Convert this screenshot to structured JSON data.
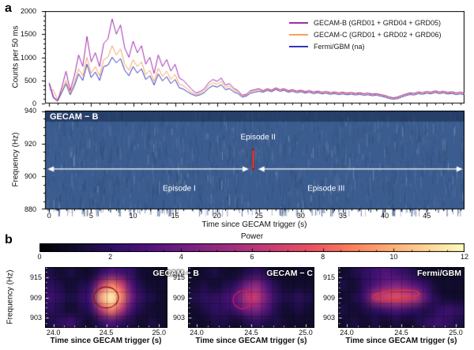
{
  "figure": {
    "panel_a": "a",
    "panel_b": "b"
  },
  "shared": {
    "counts_label": "Counts per 50 ms",
    "freq_label": "Frequency (Hz)",
    "time_label": "Time since GECAM trigger (s)"
  },
  "chart_data": [
    {
      "id": "lightcurve_panel",
      "type": "line",
      "ylabel": "Counts per 50 ms",
      "ylim": [
        0,
        2000
      ],
      "yticks": [
        0,
        500,
        1000,
        1500,
        2000
      ],
      "ytick_minor": 100,
      "xlim": [
        -0.5,
        49.5
      ],
      "xticks": [
        0,
        5,
        10,
        15,
        20,
        25,
        30,
        35,
        40,
        45
      ],
      "xtick_minor": 1,
      "t_start": 0,
      "t_step": 0.5,
      "legend_position": "upper right",
      "series": [
        {
          "name": "GECAM-B (GRD01 + GRD04 + GRD05)",
          "color": "#a22ab0",
          "values": [
            450,
            150,
            60,
            350,
            700,
            280,
            600,
            1050,
            800,
            1450,
            900,
            1100,
            800,
            1300,
            1400,
            1830,
            1500,
            1700,
            1200,
            1000,
            1350,
            1100,
            1250,
            850,
            1000,
            650,
            1050,
            800,
            950,
            700,
            850,
            550,
            500,
            400,
            300,
            230,
            260,
            320,
            450,
            520,
            480,
            550,
            400,
            430,
            330,
            280,
            180,
            200,
            280,
            300,
            320,
            280,
            320,
            290,
            340,
            300,
            320,
            280,
            300,
            270,
            290,
            260,
            280,
            250,
            270,
            245,
            260,
            235,
            250,
            230,
            245,
            225,
            240,
            220,
            235,
            215,
            225,
            205,
            215,
            195,
            175,
            145,
            125,
            140,
            175,
            205,
            230,
            220,
            250,
            235,
            260,
            245,
            275,
            250,
            265,
            240,
            255,
            230,
            245,
            225
          ]
        },
        {
          "name": "GECAM-C (GRD01 + GRD02 + GRD06)",
          "color": "#f2a45c",
          "values": [
            300,
            290,
            80,
            280,
            500,
            220,
            450,
            750,
            600,
            1000,
            650,
            800,
            600,
            950,
            1000,
            1250,
            1050,
            1180,
            850,
            720,
            950,
            800,
            900,
            620,
            720,
            480,
            760,
            590,
            700,
            520,
            630,
            420,
            380,
            310,
            240,
            195,
            225,
            275,
            390,
            450,
            415,
            475,
            350,
            375,
            295,
            250,
            165,
            185,
            260,
            280,
            300,
            265,
            305,
            275,
            325,
            285,
            305,
            265,
            285,
            255,
            275,
            245,
            265,
            235,
            255,
            230,
            245,
            220,
            235,
            215,
            230,
            210,
            225,
            205,
            220,
            200,
            210,
            190,
            200,
            180,
            160,
            130,
            112,
            125,
            160,
            190,
            215,
            205,
            235,
            220,
            245,
            230,
            260,
            235,
            250,
            225,
            240,
            215,
            230,
            210
          ]
        },
        {
          "name": "Fermi/GBM (na)",
          "color": "#3434bb",
          "values": [
            420,
            120,
            50,
            240,
            430,
            190,
            380,
            640,
            500,
            850,
            560,
            680,
            500,
            800,
            830,
            1000,
            880,
            970,
            720,
            600,
            800,
            660,
            750,
            520,
            600,
            400,
            640,
            490,
            580,
            430,
            520,
            340,
            310,
            250,
            200,
            165,
            190,
            235,
            330,
            385,
            355,
            405,
            300,
            320,
            250,
            215,
            140,
            160,
            225,
            245,
            265,
            245,
            285,
            255,
            305,
            265,
            285,
            245,
            265,
            235,
            255,
            225,
            245,
            215,
            235,
            210,
            225,
            200,
            215,
            195,
            210,
            190,
            205,
            185,
            200,
            180,
            190,
            170,
            180,
            160,
            140,
            110,
            95,
            105,
            140,
            170,
            195,
            185,
            215,
            200,
            225,
            210,
            240,
            215,
            230,
            205,
            220,
            195,
            210,
            190
          ]
        }
      ]
    },
    {
      "id": "spectrogram_full",
      "type": "heatmap",
      "title": "GECAM − B",
      "ylabel": "Frequency (Hz)",
      "ylim": [
        880,
        940
      ],
      "yticks": [
        880,
        900,
        920,
        940
      ],
      "ytick_minor": 5,
      "xlim": [
        -0.5,
        49.5
      ],
      "xticks": [
        0,
        5,
        10,
        15,
        20,
        25,
        30,
        35,
        40,
        45
      ],
      "xtick_minor": 1,
      "xlabel": "Time since GECAM trigger (s)",
      "background": "blue-noise",
      "noise_colors": {
        "base": "#3b5c8e",
        "dark": "#32517d",
        "mid": "#44639a",
        "light": "#53719f",
        "bright": "#7f96b8"
      },
      "arrow_color": "#ffffff",
      "marker_color": "#a31515",
      "marker_core_color": "#ff6a5a",
      "episodes": [
        {
          "name": "Episode I",
          "t_start": -0.2,
          "t_end": 23.8,
          "arrow_f": 904.5,
          "label_t": 15.5,
          "label_f": 892.5
        },
        {
          "name": "Episode II",
          "marker_t": 24.3,
          "marker_f_lo": 904,
          "marker_f_hi": 917,
          "label_t": 24.9,
          "label_f": 923.5
        },
        {
          "name": "Episode III",
          "t_start": 24.9,
          "t_end": 49.3,
          "arrow_f": 904.5,
          "label_t": 33.0,
          "label_f": 892.5
        }
      ]
    },
    {
      "id": "power_colorbar",
      "type": "colorbar",
      "title": "Power",
      "lim": [
        0,
        12
      ],
      "ticks": [
        0,
        2,
        4,
        6,
        8,
        10,
        12
      ],
      "tick_minor": 0.5,
      "stops": [
        "#000004",
        "#120d31",
        "#331068",
        "#57157e",
        "#7b2382",
        "#a1307e",
        "#c83e73",
        "#e75263",
        "#f97b5d",
        "#fea973",
        "#fed395",
        "#fcfdbf"
      ]
    },
    {
      "id": "zoom_gecam_b",
      "type": "heatmap",
      "title": "GECAM − B",
      "xlim": [
        23.92,
        25.08
      ],
      "xticks": [
        24.0,
        24.5,
        25.0
      ],
      "xtick_minor": 0.1,
      "ylim": [
        900,
        918
      ],
      "yticks": [
        903,
        909,
        915
      ],
      "ytick_minor": 1.5,
      "xlabel": "Time since GECAM trigger (s)",
      "power": [
        [
          1.5,
          1,
          1.5,
          1,
          1,
          2,
          3,
          2.5,
          2,
          1,
          1,
          1
        ],
        [
          2,
          1.5,
          1,
          1.5,
          2,
          6,
          9,
          7,
          3,
          1.5,
          1,
          1
        ],
        [
          2.5,
          2,
          1.5,
          2,
          3,
          10,
          12,
          9,
          4,
          2,
          1.5,
          1
        ],
        [
          2,
          1.5,
          1,
          1.5,
          2,
          6,
          9,
          6,
          2.5,
          1.5,
          1,
          1
        ],
        [
          1.5,
          2,
          2.5,
          1.5,
          1,
          2,
          3,
          2,
          1.5,
          1,
          1.5,
          1
        ]
      ],
      "contour": {
        "t": 24.5,
        "f": 909,
        "rt": 0.115,
        "rf": 3.1,
        "rot_deg": 0,
        "color": "#8b1410"
      }
    },
    {
      "id": "zoom_gecam_c",
      "type": "heatmap",
      "title": "GECAM − C",
      "xlim": [
        23.92,
        25.08
      ],
      "xticks": [
        24.0,
        24.5,
        25.0
      ],
      "xtick_minor": 0.1,
      "ylim": [
        900,
        918
      ],
      "yticks": [
        903,
        909,
        915
      ],
      "ytick_minor": 1.5,
      "xlabel": "Time since GECAM trigger (s)",
      "power": [
        [
          1,
          1,
          1.5,
          1,
          1,
          1.5,
          2,
          1.5,
          1,
          1,
          1,
          1
        ],
        [
          1,
          1.5,
          1,
          1.5,
          2,
          4,
          5,
          3,
          1.5,
          1,
          1,
          1
        ],
        [
          1.5,
          2,
          2,
          2.5,
          3.5,
          6,
          6.5,
          4,
          2,
          1.5,
          2,
          1.5
        ],
        [
          1,
          1.5,
          2,
          2,
          2.5,
          4,
          4.5,
          3,
          1.5,
          1,
          1.5,
          1
        ],
        [
          1,
          1,
          1.5,
          1.5,
          1,
          1.5,
          2,
          1.5,
          1.5,
          1,
          1,
          1
        ]
      ],
      "contour": {
        "t": 24.42,
        "f": 908.3,
        "rt": 0.085,
        "rf": 2.6,
        "rot_deg": 0,
        "color": "#e0194e"
      }
    },
    {
      "id": "zoom_fermi_gbm",
      "type": "heatmap",
      "title": "Fermi/GBM",
      "xlim": [
        23.92,
        25.08
      ],
      "xticks": [
        24.0,
        24.5,
        25.0
      ],
      "xtick_minor": 0.1,
      "ylim": [
        900,
        918
      ],
      "yticks": [
        903,
        909,
        915
      ],
      "ytick_minor": 1.5,
      "xlabel": "Time since GECAM trigger (s)",
      "power": [
        [
          1,
          1.5,
          2,
          2.5,
          3,
          2.5,
          2,
          1.5,
          1,
          1,
          1,
          1
        ],
        [
          1.5,
          1,
          2,
          3,
          4,
          4.5,
          4,
          3,
          2,
          1,
          1,
          1
        ],
        [
          1,
          1.5,
          2.5,
          6,
          7,
          7.5,
          7,
          6,
          3,
          1.5,
          1,
          1
        ],
        [
          1.5,
          1,
          1.5,
          2,
          2.5,
          3,
          2.5,
          2,
          1.5,
          2,
          2.5,
          2
        ],
        [
          1,
          1.5,
          1,
          1.5,
          1,
          1.5,
          1,
          1.5,
          2,
          2.5,
          2,
          1.5
        ]
      ],
      "contour": {
        "t": 24.45,
        "f": 909.7,
        "rt": 0.215,
        "rf": 1.35,
        "rot_deg": -4,
        "color": "#e23338"
      }
    }
  ]
}
